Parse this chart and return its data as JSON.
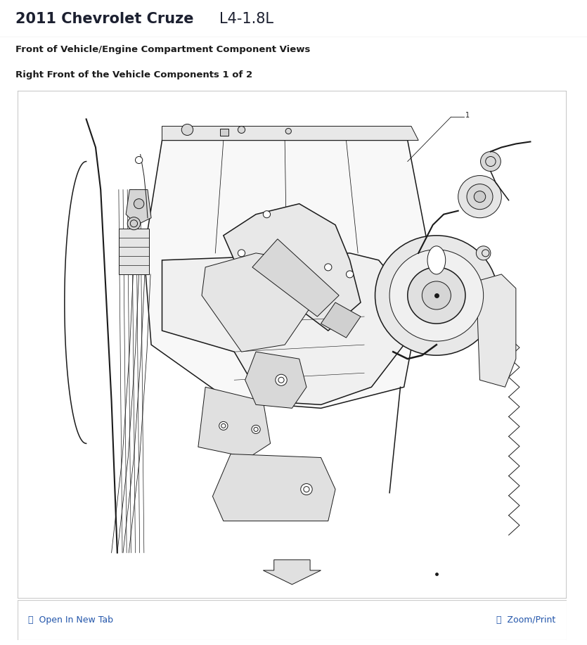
{
  "title_bold": "2011 Chevrolet Cruze",
  "title_regular": "L4-1.8L",
  "subtitle1": "Front of Vehicle/Engine Compartment Component Views",
  "subtitle2": "Right Front of the Vehicle Components 1 of 2",
  "footer_left": "⧉  Open In New Tab",
  "footer_right": "🔍  Zoom/Print",
  "header_bg": "#e5e5e5",
  "body_bg": "#ffffff",
  "footer_bg": "#f0f0f5",
  "border_color": "#cccccc",
  "title_color": "#1c2030",
  "subtitle_color": "#1c1c1c",
  "footer_link_color": "#2255aa",
  "diagram_bg": "#ffffff",
  "diagram_border": "#bbbbbb",
  "line_color": "#1a1a1a",
  "fig_width": 8.35,
  "fig_height": 9.17
}
